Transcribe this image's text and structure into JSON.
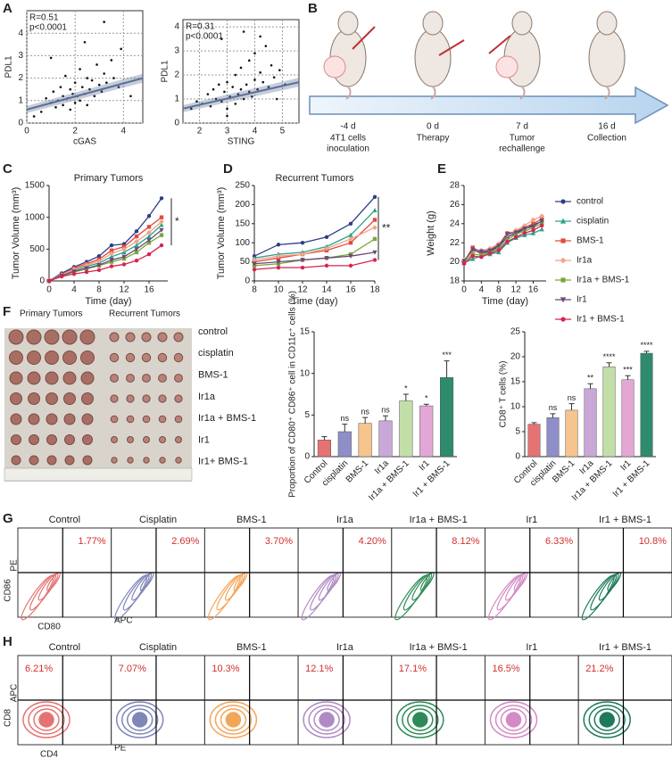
{
  "panel_labels": [
    "A",
    "B",
    "C",
    "D",
    "E",
    "F",
    "G",
    "H"
  ],
  "chart_data": [
    {
      "type": "scatter",
      "x_label": "cGAS",
      "y_label": "PDL1",
      "annotations": [
        "R=0.51",
        "p<0.0001"
      ],
      "color": "#111111",
      "grid": true,
      "xlim": [
        0,
        4.8
      ],
      "ylim": [
        0,
        5
      ],
      "xticks": [
        0,
        2,
        4
      ],
      "yticks": [
        0,
        1,
        2,
        3,
        4
      ],
      "x": [
        0.6,
        0.8,
        1.0,
        1.1,
        1.2,
        1.3,
        1.4,
        1.5,
        1.5,
        1.6,
        1.7,
        1.8,
        1.8,
        1.9,
        2.0,
        2.0,
        2.1,
        2.2,
        2.2,
        2.3,
        2.4,
        2.5,
        2.5,
        2.6,
        2.7,
        2.8,
        2.9,
        3.0,
        3.1,
        3.2,
        3.3,
        3.5,
        3.6,
        3.8,
        3.9,
        1.0,
        2.4,
        3.2,
        0.3,
        4.3
      ],
      "values": [
        0.5,
        1.1,
        0.9,
        1.4,
        0.7,
        1.0,
        1.6,
        0.8,
        1.2,
        2.1,
        1.1,
        0.6,
        1.5,
        1.3,
        0.9,
        1.8,
        1.2,
        2.4,
        1.0,
        1.6,
        1.3,
        2.0,
        0.8,
        1.5,
        1.9,
        1.2,
        2.6,
        1.7,
        1.4,
        2.2,
        1.8,
        2.8,
        2.0,
        1.6,
        3.3,
        2.9,
        3.6,
        4.5,
        0.3,
        1.2
      ],
      "trend": {
        "color": "#5b6f96",
        "x": [
          0,
          4.8
        ],
        "y": [
          0.6,
          2.0
        ]
      }
    },
    {
      "type": "scatter",
      "x_label": "STING",
      "y_label": "PDL1",
      "annotations": [
        "R=0.31",
        "p<0.0001"
      ],
      "color": "#111111",
      "grid": true,
      "xlim": [
        1.4,
        5.6
      ],
      "ylim": [
        0,
        4.3
      ],
      "xticks": [
        2,
        3,
        4,
        5
      ],
      "yticks": [
        0,
        1,
        2,
        3,
        4
      ],
      "x": [
        1.7,
        1.9,
        2.1,
        2.3,
        2.4,
        2.5,
        2.6,
        2.7,
        2.8,
        2.9,
        3.0,
        3.0,
        3.1,
        3.2,
        3.3,
        3.3,
        3.4,
        3.5,
        3.5,
        3.6,
        3.7,
        3.8,
        3.8,
        3.9,
        4.0,
        4.0,
        4.1,
        4.2,
        4.3,
        4.4,
        4.5,
        4.6,
        4.7,
        4.9,
        5.1,
        2.8,
        3.6,
        4.2,
        3.0,
        4.8
      ],
      "values": [
        0.6,
        0.9,
        0.8,
        1.2,
        0.7,
        1.4,
        1.0,
        1.6,
        0.9,
        1.3,
        0.6,
        1.7,
        1.1,
        1.5,
        0.8,
        2.0,
        1.2,
        1.4,
        2.3,
        1.0,
        1.6,
        1.3,
        2.6,
        1.1,
        1.8,
        2.9,
        1.4,
        2.1,
        1.7,
        3.2,
        1.5,
        2.4,
        1.9,
        2.2,
        1.6,
        3.5,
        3.8,
        3.6,
        0.3,
        1.0
      ],
      "trend": {
        "color": "#5b6f96",
        "x": [
          1.4,
          5.6
        ],
        "y": [
          0.6,
          1.7
        ]
      }
    },
    {
      "type": "line",
      "title": "Primary Tumors",
      "x_label": "Time (day)",
      "y_label": "Tumor Volume (mm³)",
      "annotation": "*",
      "xlim": [
        0,
        19
      ],
      "ylim": [
        0,
        1500
      ],
      "xticks": [
        0,
        4,
        8,
        12,
        16
      ],
      "yticks": [
        0,
        500,
        1000,
        1500
      ],
      "x": [
        0,
        2,
        4,
        6,
        8,
        10,
        12,
        14,
        16,
        18
      ],
      "series": [
        {
          "color": "#2b3f87",
          "marker": "circle",
          "values": [
            0,
            120,
            220,
            300,
            390,
            560,
            580,
            780,
            1020,
            1300
          ]
        },
        {
          "color": "#2aa38a",
          "marker": "triangle",
          "values": [
            0,
            90,
            170,
            230,
            280,
            380,
            450,
            560,
            700,
            880
          ]
        },
        {
          "color": "#e04a3f",
          "marker": "square",
          "values": [
            0,
            100,
            200,
            270,
            340,
            480,
            540,
            700,
            850,
            1000
          ]
        },
        {
          "color": "#f0a48a",
          "marker": "diamond",
          "values": [
            0,
            95,
            180,
            250,
            310,
            430,
            500,
            620,
            760,
            930
          ]
        },
        {
          "color": "#7aa83a",
          "marker": "square",
          "values": [
            0,
            80,
            140,
            190,
            240,
            300,
            350,
            450,
            600,
            720
          ]
        },
        {
          "color": "#6b4a7a",
          "marker": "triangle-down",
          "values": [
            0,
            85,
            150,
            200,
            250,
            330,
            380,
            500,
            640,
            800
          ]
        },
        {
          "color": "#d8234f",
          "marker": "circle",
          "values": [
            0,
            70,
            110,
            140,
            170,
            230,
            260,
            320,
            420,
            560
          ]
        }
      ]
    },
    {
      "type": "line",
      "title": "Recurrent Tumors",
      "x_label": "Time (day)",
      "y_label": "Tumor Volume (mm³)",
      "annotation": "**",
      "xlim": [
        8,
        18
      ],
      "ylim": [
        0,
        250
      ],
      "xticks": [
        8,
        10,
        12,
        14,
        16,
        18
      ],
      "yticks": [
        0,
        50,
        100,
        150,
        200,
        250
      ],
      "x": [
        8,
        10,
        12,
        14,
        16,
        18
      ],
      "series": [
        {
          "color": "#2b3f87",
          "marker": "circle",
          "values": [
            65,
            95,
            100,
            115,
            150,
            220
          ]
        },
        {
          "color": "#2aa38a",
          "marker": "triangle",
          "values": [
            60,
            70,
            75,
            90,
            120,
            185
          ]
        },
        {
          "color": "#e04a3f",
          "marker": "square",
          "values": [
            50,
            60,
            70,
            80,
            100,
            160
          ]
        },
        {
          "color": "#f0a48a",
          "marker": "diamond",
          "values": [
            55,
            65,
            70,
            85,
            110,
            140
          ]
        },
        {
          "color": "#7aa83a",
          "marker": "square",
          "values": [
            40,
            45,
            55,
            60,
            70,
            110
          ]
        },
        {
          "color": "#6b4a7a",
          "marker": "triangle-down",
          "values": [
            45,
            50,
            55,
            60,
            65,
            75
          ]
        },
        {
          "color": "#d8234f",
          "marker": "circle",
          "values": [
            30,
            35,
            35,
            40,
            40,
            55
          ]
        }
      ]
    },
    {
      "type": "line",
      "x_label": "Time (day)",
      "y_label": "Weight (g)",
      "legend": "right",
      "xlim": [
        0,
        19
      ],
      "ylim": [
        18,
        28
      ],
      "xticks": [
        0,
        4,
        8,
        12,
        16
      ],
      "yticks": [
        18,
        20,
        22,
        24,
        26,
        28
      ],
      "x": [
        0,
        2,
        4,
        6,
        8,
        10,
        12,
        14,
        16,
        18
      ],
      "series": [
        {
          "name": "control",
          "color": "#2b3f87",
          "marker": "circle",
          "values": [
            20.1,
            21.2,
            20.9,
            21.1,
            21.6,
            22.6,
            23.0,
            23.4,
            23.9,
            24.2
          ]
        },
        {
          "name": "cisplatin",
          "color": "#2aa38a",
          "marker": "triangle",
          "values": [
            19.9,
            20.3,
            20.6,
            20.8,
            21.0,
            22.0,
            22.5,
            22.8,
            23.0,
            23.4
          ]
        },
        {
          "name": "BMS-1",
          "color": "#e04a3f",
          "marker": "square",
          "values": [
            20.0,
            21.5,
            21.0,
            21.3,
            21.8,
            23.0,
            23.2,
            23.6,
            24.0,
            24.5
          ]
        },
        {
          "name": "Ir1a",
          "color": "#f0a48a",
          "marker": "diamond",
          "values": [
            20.2,
            21.0,
            21.2,
            21.4,
            21.9,
            22.8,
            23.3,
            23.8,
            24.4,
            24.8
          ]
        },
        {
          "name": "Ir1a + BMS-1",
          "color": "#7aa83a",
          "marker": "square",
          "values": [
            20.0,
            20.8,
            20.7,
            21.0,
            21.4,
            22.3,
            22.9,
            23.2,
            23.6,
            24.0
          ]
        },
        {
          "name": "Ir1",
          "color": "#6b4a7a",
          "marker": "triangle-down",
          "values": [
            20.1,
            21.3,
            21.1,
            21.2,
            21.7,
            22.9,
            23.1,
            23.5,
            23.7,
            24.3
          ]
        },
        {
          "name": "Ir1 + BMS-1",
          "color": "#d8234f",
          "marker": "circle",
          "values": [
            19.8,
            20.6,
            20.5,
            20.9,
            21.2,
            22.1,
            22.6,
            23.0,
            23.3,
            23.8
          ]
        }
      ]
    },
    {
      "type": "bar",
      "y_label": "Proportion of CD80⁺ CD86⁺ cell in CD11c⁺ cells (%)",
      "categories": [
        "Control",
        "cisplatin",
        "BMS-1",
        "Ir1a",
        "Ir1a + BMS-1",
        "Ir1",
        "Ir1 + BMS-1"
      ],
      "colors": [
        "#e57373",
        "#8e8ec9",
        "#f6c48c",
        "#c9a8d8",
        "#c2dfa8",
        "#e3a7d6",
        "#2e8b6e"
      ],
      "values": [
        2,
        3,
        4,
        4.3,
        6.7,
        6.1,
        9.5
      ],
      "errors": [
        0.4,
        0.9,
        0.7,
        0.6,
        0.8,
        0.2,
        2.0
      ],
      "significance": [
        null,
        "ns",
        "ns",
        "ns",
        "*",
        "*",
        "***"
      ],
      "ylim": [
        0,
        15
      ],
      "yticks": [
        0,
        5,
        10,
        15
      ]
    },
    {
      "type": "bar",
      "y_label": "CD8⁺ T cells (%)",
      "categories": [
        "Control",
        "cisplatin",
        "BMS-1",
        "Ir1a",
        "Ir1a + BMS-1",
        "Ir1",
        "Ir1 + BMS-1"
      ],
      "colors": [
        "#e57373",
        "#8e8ec9",
        "#f6c48c",
        "#c9a8d8",
        "#c2dfa8",
        "#e3a7d6",
        "#2e8b6e"
      ],
      "values": [
        6.5,
        7.8,
        9.3,
        13.6,
        18,
        15.4,
        20.7
      ],
      "errors": [
        0.3,
        0.8,
        1.3,
        1.0,
        0.8,
        0.8,
        0.4
      ],
      "significance": [
        null,
        "ns",
        "ns",
        "**",
        "****",
        "***",
        "****"
      ],
      "ylim": [
        0,
        25
      ],
      "yticks": [
        0,
        5,
        10,
        15,
        20,
        25
      ]
    }
  ],
  "schematic": {
    "steps": [
      {
        "day": "-4 d",
        "label": [
          "4T1 cells",
          "inoculation"
        ]
      },
      {
        "day": "0 d",
        "label": [
          "Therapy"
        ]
      },
      {
        "day": "7 d",
        "label": [
          "Tumor",
          "rechallenge"
        ]
      },
      {
        "day": "16 d",
        "label": [
          "Collection"
        ]
      }
    ]
  },
  "tumor_photo": {
    "groups": [
      "Primary Tumors",
      "Recurrent Tumors"
    ],
    "rows": [
      "control",
      "cisplatin",
      "BMS-1",
      "Ir1a",
      "Ir1a + BMS-1",
      "Ir1",
      "Ir1+ BMS-1"
    ]
  },
  "flow_G": {
    "y_label": "CD86",
    "y_channel": "PE",
    "x_label": "CD80",
    "x_channel": "APC",
    "panels": [
      {
        "title": "Control",
        "percent": "1.77%",
        "color": "#e57373"
      },
      {
        "title": "Cisplatin",
        "percent": "2.69%",
        "color": "#7f86b8"
      },
      {
        "title": "BMS-1",
        "percent": "3.70%",
        "color": "#f2a65a"
      },
      {
        "title": "Ir1a",
        "percent": "4.20%",
        "color": "#b08ac4"
      },
      {
        "title": "Ir1a + BMS-1",
        "percent": "8.12%",
        "color": "#2e8b57"
      },
      {
        "title": "Ir1",
        "percent": "6.33%",
        "color": "#d48ac4"
      },
      {
        "title": "Ir1 + BMS-1",
        "percent": "10.8%",
        "color": "#1f7a5a"
      }
    ]
  },
  "flow_H": {
    "y_label": "CD8",
    "y_channel": "APC",
    "x_label": "CD4",
    "x_channel": "PE",
    "panels": [
      {
        "title": "Control",
        "percent": "6.21%",
        "color": "#e57373"
      },
      {
        "title": "Cisplatin",
        "percent": "7.07%",
        "color": "#7f86b8"
      },
      {
        "title": "BMS-1",
        "percent": "10.3%",
        "color": "#f2a65a"
      },
      {
        "title": "Ir1a",
        "percent": "12.1%",
        "color": "#b08ac4"
      },
      {
        "title": "Ir1a + BMS-1",
        "percent": "17.1%",
        "color": "#2e8b57"
      },
      {
        "title": "Ir1",
        "percent": "16.5%",
        "color": "#d48ac4"
      },
      {
        "title": "Ir1 + BMS-1",
        "percent": "21.2%",
        "color": "#1f7a5a"
      }
    ]
  }
}
